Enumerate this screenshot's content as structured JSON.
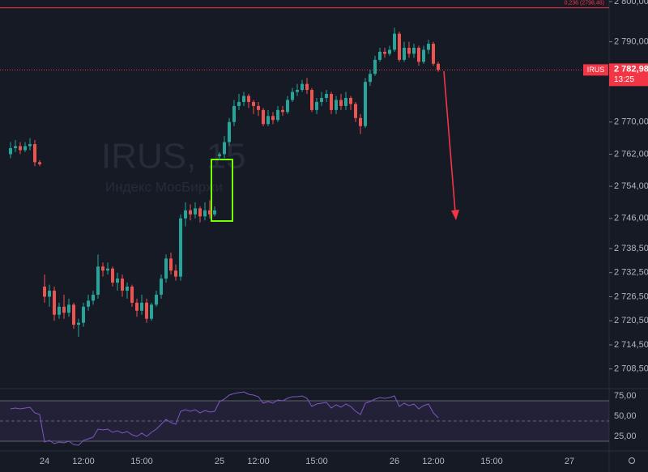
{
  "chart_data": {
    "type": "candlestick",
    "symbol": "IRUS",
    "watermark_title": "IRUS, 15",
    "watermark_subtitle": "Индекс МосБиржи",
    "up_color": "#26a69a",
    "down_color": "#ef5350",
    "categories": [
      null,
      null,
      null,
      null,
      null,
      null,
      null,
      "24",
      null,
      null,
      null,
      null,
      null,
      null,
      null,
      "12:00",
      null,
      null,
      null,
      null,
      null,
      null,
      null,
      null,
      null,
      null,
      null,
      "15:00",
      null,
      null,
      null,
      null,
      null,
      null,
      null,
      null,
      null,
      null,
      null,
      null,
      null,
      null,
      null,
      "25",
      null,
      null,
      null,
      null,
      null,
      null,
      null,
      "12:00",
      null,
      null,
      null,
      null,
      null,
      null,
      null,
      null,
      null,
      null,
      null,
      "15:00",
      null,
      null,
      null,
      null,
      null,
      null,
      null,
      null,
      null,
      null,
      null,
      null,
      null,
      null,
      null,
      "26",
      null,
      null,
      null,
      null,
      null,
      null,
      null,
      "12:00",
      null,
      null,
      null,
      null,
      null,
      null,
      null,
      null,
      null,
      null,
      null,
      "15:00",
      null,
      null,
      null,
      null,
      null,
      null,
      null,
      null,
      null,
      null,
      null,
      null,
      null,
      null,
      null,
      "27",
      null
    ],
    "open": [
      2762,
      2763.5,
      2764,
      2763,
      2764,
      2764.5,
      2760,
      2729,
      2726.5,
      2728,
      2722,
      2724,
      2722.5,
      2724.5,
      2719.5,
      2720,
      2724,
      2725.5,
      2727,
      2734,
      2733,
      2733.5,
      2730,
      2731,
      2728,
      2729,
      2725,
      2723,
      2725,
      2721,
      2724.5,
      2727,
      2731,
      2736,
      2733,
      2731.5,
      2746,
      2748,
      2747,
      2748.5,
      2746.5,
      2748,
      2747,
      2761.5,
      2762,
      2765,
      2770,
      2774,
      2775,
      2776.5,
      2775,
      2774,
      2773,
      2769.5,
      2771.5,
      2770.5,
      2773,
      2772.5,
      2775.5,
      2777.5,
      2778,
      2779.5,
      2778,
      2773,
      2775,
      2776,
      2777,
      2773,
      2775.5,
      2774,
      2776,
      2774.5,
      2771,
      2769,
      2780,
      2782,
      2785.5,
      2787.5,
      2787,
      2788,
      2792,
      2785.5,
      2788.5,
      2787,
      2788.5,
      2785,
      2788,
      2789.5,
      2784.5,
      null,
      null,
      null,
      null,
      null,
      null,
      null,
      null,
      null,
      null,
      null,
      null,
      null,
      null,
      null,
      null,
      null,
      null,
      null,
      null,
      null,
      null,
      null,
      null,
      null,
      null,
      null,
      null
    ],
    "high": [
      2765,
      2765.5,
      2765,
      2765,
      2766,
      2765.5,
      2760.5,
      2732,
      2729.5,
      2729,
      2725,
      2727,
      2726,
      2725,
      2721,
      2725,
      2727,
      2728,
      2737,
      2735,
      2735,
      2734,
      2732.5,
      2732,
      2730,
      2729.5,
      2726,
      2727,
      2726,
      2725,
      2728,
      2732,
      2737,
      2737.5,
      2734.5,
      2747,
      2750,
      2749.5,
      2750,
      2749,
      2750,
      2750.5,
      2749,
      2762.5,
      2766.5,
      2771,
      2775.5,
      2777,
      2777.5,
      2777,
      2775.5,
      2775,
      2773.5,
      2773,
      2772.5,
      2774,
      2774,
      2776.5,
      2778.5,
      2779.5,
      2780.5,
      2781,
      2778.5,
      2776,
      2777.5,
      2778,
      2777.5,
      2776.5,
      2777,
      2777.5,
      2776.5,
      2775,
      2772,
      2781,
      2783,
      2786.5,
      2788.5,
      2788.5,
      2789,
      2793.5,
      2792.5,
      2790,
      2790,
      2789.5,
      2789,
      2789,
      2790.5,
      2790,
      2785,
      null,
      null,
      null,
      null,
      null,
      null,
      null,
      null,
      null,
      null,
      null,
      null,
      null,
      null,
      null,
      null,
      null,
      null,
      null,
      null,
      null,
      null,
      null,
      null,
      null,
      null,
      null,
      null
    ],
    "low": [
      2761,
      2762.5,
      2762,
      2762.5,
      2763,
      2759,
      2759,
      2725,
      2724,
      2720.5,
      2721,
      2721,
      2721.5,
      2718.5,
      2716.5,
      2719,
      2723,
      2724.5,
      2726,
      2731.5,
      2732,
      2729,
      2728,
      2726.5,
      2726,
      2724,
      2721.5,
      2722,
      2720,
      2720.5,
      2724,
      2726,
      2730,
      2732,
      2730.5,
      2730.5,
      2744,
      2745.5,
      2746,
      2745,
      2745.5,
      2746,
      2746.5,
      2760.5,
      2761,
      2764,
      2769,
      2773,
      2774,
      2773.5,
      2772,
      2771.5,
      2769,
      2769,
      2769.5,
      2770,
      2771.5,
      2772,
      2775,
      2776.5,
      2777.5,
      2777,
      2772.5,
      2772,
      2774,
      2775,
      2772,
      2772,
      2773,
      2773,
      2773,
      2770,
      2767,
      2768.5,
      2779,
      2781.5,
      2785,
      2786,
      2786.5,
      2787.5,
      2785,
      2785,
      2786,
      2786,
      2784,
      2784.5,
      2787,
      2784,
      2782.5,
      null,
      null,
      null,
      null,
      null,
      null,
      null,
      null,
      null,
      null,
      null,
      null,
      null,
      null,
      null,
      null,
      null,
      null,
      null,
      null,
      null,
      null,
      null,
      null,
      null,
      null,
      null,
      null
    ],
    "close": [
      2763.5,
      2764,
      2763,
      2764,
      2764.5,
      2760,
      2759.5,
      2726.5,
      2728,
      2722,
      2724,
      2722.5,
      2724.5,
      2719.5,
      2720,
      2724,
      2725.5,
      2727,
      2734,
      2733,
      2733.5,
      2730,
      2731,
      2728,
      2729,
      2725,
      2723,
      2725,
      2721,
      2724.5,
      2727,
      2731,
      2736,
      2733,
      2731.5,
      2746,
      2748,
      2747,
      2748.5,
      2746.5,
      2748,
      2747,
      2748,
      2762,
      2765,
      2770,
      2774,
      2775,
      2776.5,
      2775,
      2774,
      2773,
      2769.5,
      2771.5,
      2770.5,
      2773,
      2772.5,
      2775.5,
      2777.5,
      2778,
      2779.5,
      2778,
      2773,
      2775,
      2776,
      2777,
      2773,
      2775.5,
      2774,
      2776,
      2774.5,
      2771,
      2769,
      2780,
      2782,
      2785.5,
      2787.5,
      2787,
      2788,
      2792,
      2785.5,
      2788.5,
      2787,
      2788.5,
      2785,
      2788,
      2789.5,
      2784.5,
      2782.98,
      null,
      null,
      null,
      null,
      null,
      null,
      null,
      null,
      null,
      null,
      null,
      null,
      null,
      null,
      null,
      null,
      null,
      null,
      null,
      null,
      null,
      null,
      null,
      null,
      null,
      null,
      null,
      null
    ],
    "ylim": [
      2703.6,
      2800.4
    ],
    "yticks": [
      {
        "value": 2800,
        "label": "2 800,00"
      },
      {
        "value": 2790,
        "label": "2 790,00"
      },
      {
        "value": 2770,
        "label": "2 770,00"
      },
      {
        "value": 2762,
        "label": "2 762,00"
      },
      {
        "value": 2754,
        "label": "2 754,00"
      },
      {
        "value": 2746,
        "label": "2 746,00"
      },
      {
        "value": 2738.5,
        "label": "2 738,50"
      },
      {
        "value": 2732.5,
        "label": "2 732,50"
      },
      {
        "value": 2726.5,
        "label": "2 726,50"
      },
      {
        "value": 2720.5,
        "label": "2 720,50"
      },
      {
        "value": 2714.5,
        "label": "2 714,50"
      },
      {
        "value": 2708.5,
        "label": "2 708,50"
      }
    ],
    "price_tag": {
      "value": 2782.98,
      "label": "2 782,98",
      "time": "13:25",
      "color": "#f23645"
    },
    "level": {
      "value": 2798.46,
      "label": "0,236 (2798,46)",
      "color": "#f23645"
    },
    "indicator": {
      "type": "line",
      "color": "#7e57c2",
      "values": [
        65,
        66,
        65,
        66,
        67,
        60,
        58,
        24,
        26,
        22,
        24,
        23,
        25,
        21,
        20,
        26,
        28,
        30,
        40,
        39,
        40,
        36,
        38,
        35,
        37,
        33,
        31,
        35,
        31,
        36,
        40,
        46,
        52,
        48,
        46,
        62,
        64,
        62,
        64,
        60,
        63,
        61,
        62,
        74,
        77,
        82,
        84,
        85,
        86,
        83,
        82,
        80,
        72,
        74,
        72,
        76,
        75,
        78,
        80,
        80,
        81,
        78,
        68,
        71,
        72,
        73,
        66,
        70,
        67,
        71,
        68,
        62,
        58,
        72,
        74,
        77,
        79,
        78,
        79,
        81,
        68,
        72,
        69,
        71,
        65,
        69,
        71,
        60,
        54,
        null,
        null,
        null,
        null,
        null,
        null,
        null,
        null,
        null,
        null,
        null,
        null,
        null,
        null,
        null,
        null,
        null,
        null,
        null,
        null,
        null,
        null,
        null,
        null,
        null,
        null,
        null,
        null
      ],
      "ylim": [
        14,
        89
      ],
      "yticks": [
        {
          "value": 75,
          "label": "75,00"
        },
        {
          "value": 50,
          "label": "50,00"
        },
        {
          "value": 25,
          "label": "25,00"
        }
      ]
    }
  }
}
